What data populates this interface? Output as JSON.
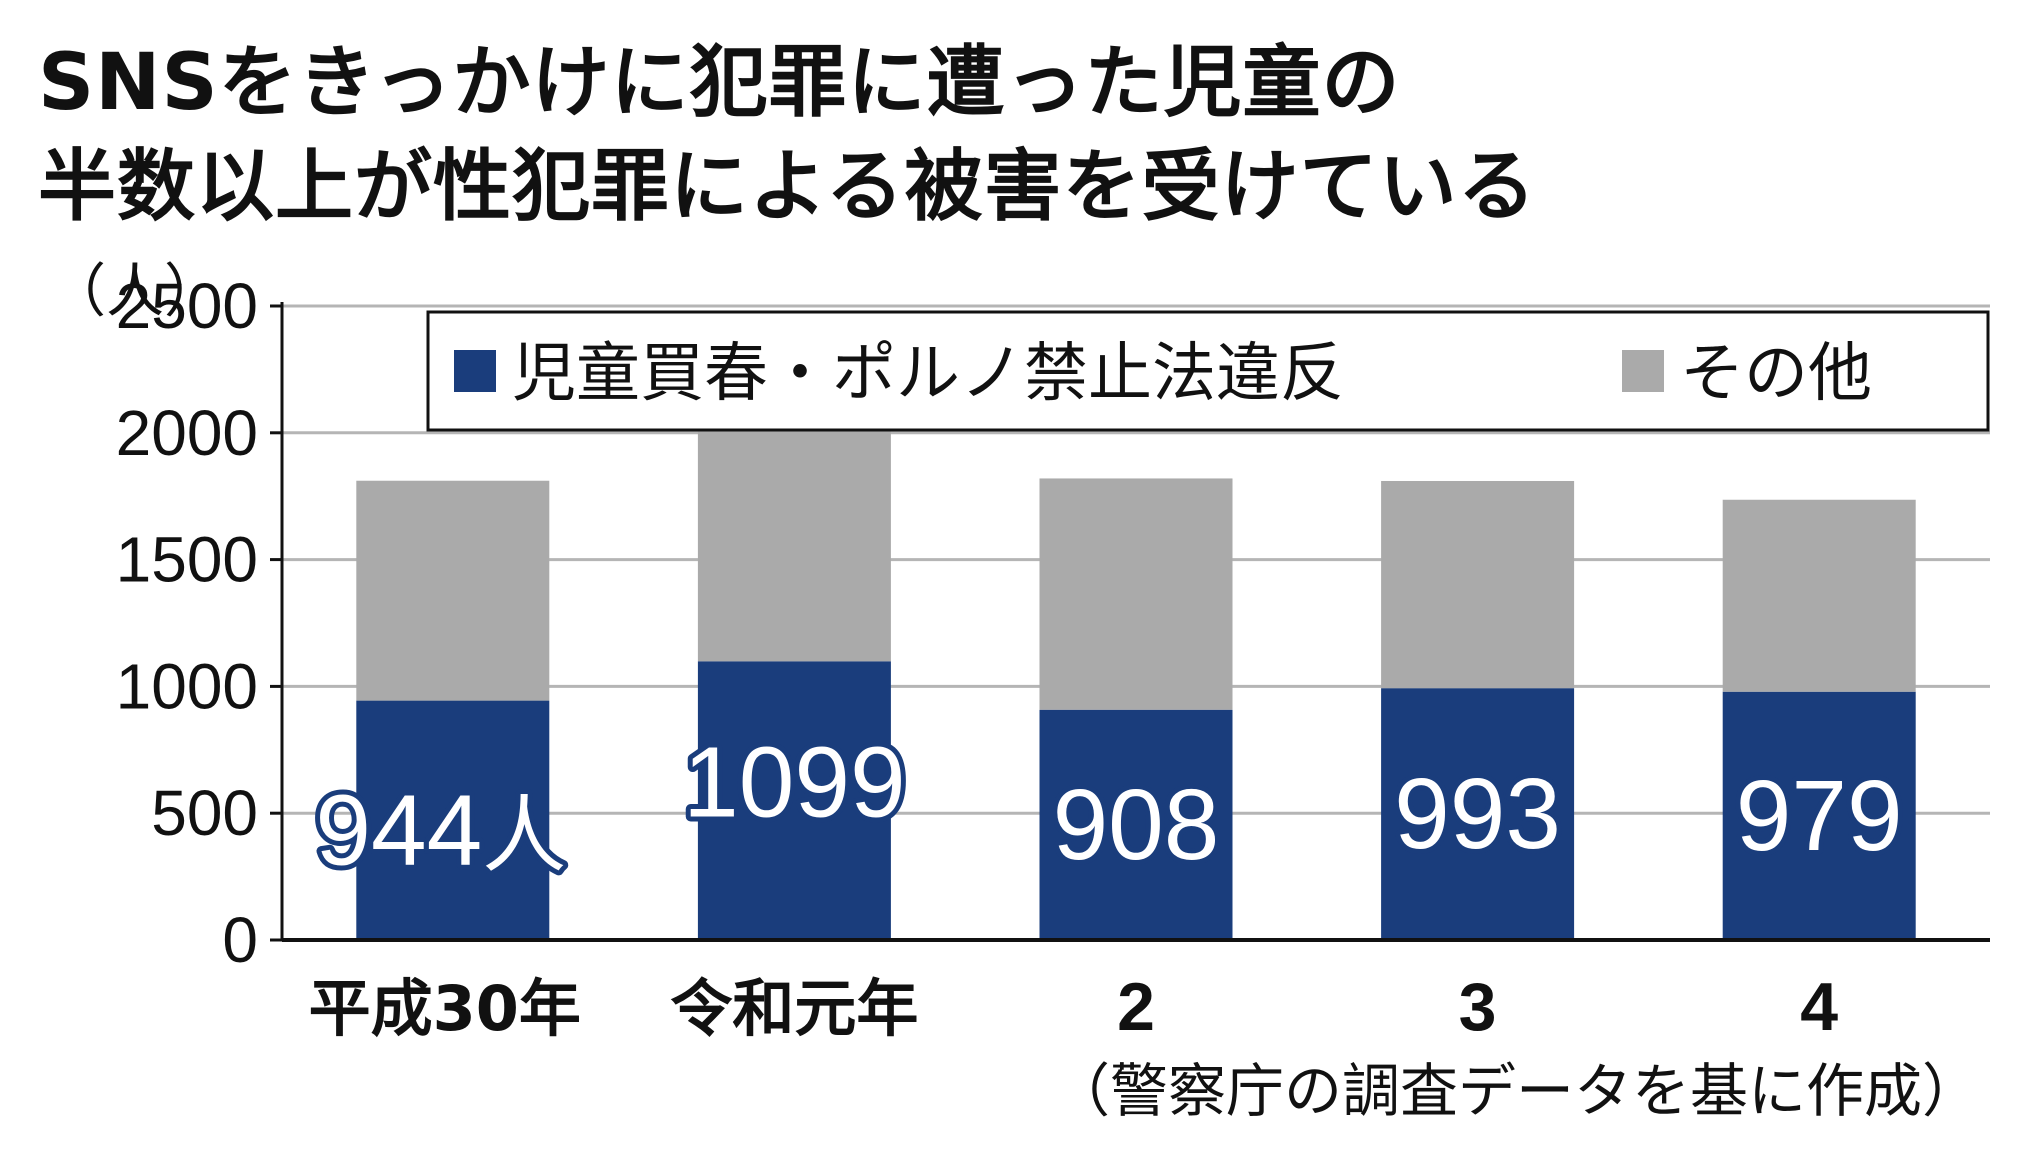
{
  "chart_data": {
    "type": "bar",
    "stacked": true,
    "title_lines": [
      "SNSをきっかけに犯罪に遭った児童の",
      "半数以上が性犯罪による被害を受けている"
    ],
    "y_unit": "（人）",
    "ylim": [
      0,
      2500
    ],
    "yticks": [
      0,
      500,
      1000,
      1500,
      2000,
      2500
    ],
    "grid": true,
    "legend_position": "top-right",
    "categories": [
      "平成30年",
      "令和元年",
      "2",
      "3",
      "4"
    ],
    "series": [
      {
        "name": "児童買春・ポルノ禁止法違反",
        "color": "#1a3d7c",
        "values": [
          944,
          1099,
          908,
          993,
          979
        ]
      },
      {
        "name": "その他",
        "color": "#aaaaaa",
        "values": [
          867,
          983,
          912,
          817,
          757
        ]
      }
    ],
    "data_labels": [
      "944",
      "1099",
      "908",
      "993",
      "979"
    ],
    "first_label_unit": "人",
    "source": "（警察庁の調査データを基に作成）"
  }
}
